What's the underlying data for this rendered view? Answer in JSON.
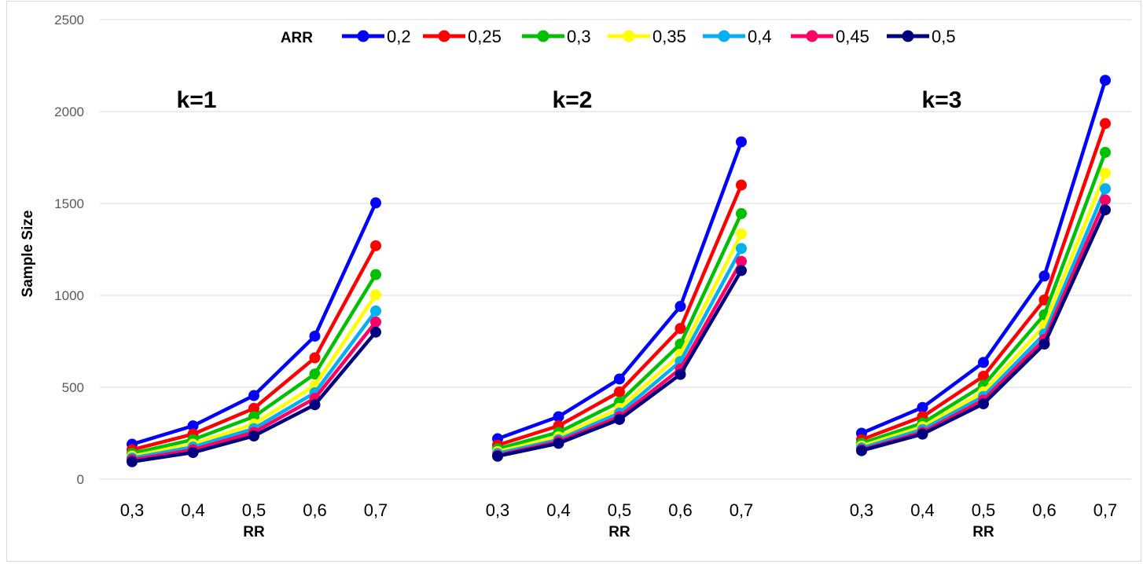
{
  "chart_data": {
    "type": "line",
    "ylabel": "Sample Size",
    "ylim": [
      0,
      2500
    ],
    "yticks": [
      "0",
      "500",
      "1000",
      "1500",
      "2000",
      "2500"
    ],
    "grid": true,
    "legend": {
      "title": "ARR",
      "position": "top"
    },
    "panels": [
      {
        "title": "k=1",
        "xlabel": "RR",
        "x": [
          "0,3",
          "0,4",
          "0,5",
          "0,6",
          "0,7"
        ],
        "series": [
          {
            "name": "0,2",
            "color": "#0000FF",
            "values": [
              190,
              290,
              455,
              778,
              1503
            ]
          },
          {
            "name": "0,25",
            "color": "#FF0000",
            "values": [
              160,
              245,
              385,
              660,
              1270
            ]
          },
          {
            "name": "0,3",
            "color": "#00C000",
            "values": [
              140,
              215,
              340,
              572,
              1113
            ]
          },
          {
            "name": "0,35",
            "color": "#FFFF00",
            "values": [
              125,
              190,
              300,
              510,
              1003
            ]
          },
          {
            "name": "0,4",
            "color": "#00B0F0",
            "values": [
              115,
              175,
              275,
              470,
              915
            ]
          },
          {
            "name": "0,45",
            "color": "#FF0066",
            "values": [
              105,
              160,
              255,
              440,
              855
            ]
          },
          {
            "name": "0,5",
            "color": "#000080",
            "values": [
              95,
              145,
              235,
              405,
              800
            ]
          }
        ]
      },
      {
        "title": "k=2",
        "xlabel": "RR",
        "x": [
          "0,3",
          "0,4",
          "0,5",
          "0,6",
          "0,7"
        ],
        "series": [
          {
            "name": "0,2",
            "color": "#0000FF",
            "values": [
              220,
              340,
              545,
              940,
              1835
            ]
          },
          {
            "name": "0,25",
            "color": "#FF0000",
            "values": [
              185,
              290,
              475,
              820,
              1600
            ]
          },
          {
            "name": "0,3",
            "color": "#00C000",
            "values": [
              165,
              255,
              420,
              735,
              1445
            ]
          },
          {
            "name": "0,35",
            "color": "#FFFF00",
            "values": [
              150,
              230,
              385,
              680,
              1335
            ]
          },
          {
            "name": "0,4",
            "color": "#00B0F0",
            "values": [
              140,
              215,
              360,
              640,
              1255
            ]
          },
          {
            "name": "0,45",
            "color": "#FF0066",
            "values": [
              130,
              205,
              340,
              600,
              1185
            ]
          },
          {
            "name": "0,5",
            "color": "#000080",
            "values": [
              125,
              195,
              325,
              570,
              1135
            ]
          }
        ]
      },
      {
        "title": "k=3",
        "xlabel": "RR",
        "x": [
          "0,3",
          "0,4",
          "0,5",
          "0,6",
          "0,7"
        ],
        "series": [
          {
            "name": "0,2",
            "color": "#0000FF",
            "values": [
              250,
              390,
              635,
              1105,
              2170
            ]
          },
          {
            "name": "0,25",
            "color": "#FF0000",
            "values": [
              215,
              340,
              560,
              975,
              1935
            ]
          },
          {
            "name": "0,3",
            "color": "#00C000",
            "values": [
              195,
              305,
              510,
              895,
              1778
            ]
          },
          {
            "name": "0,35",
            "color": "#FFFF00",
            "values": [
              180,
              285,
              475,
              835,
              1665
            ]
          },
          {
            "name": "0,4",
            "color": "#00B0F0",
            "values": [
              170,
              270,
              450,
              790,
              1580
            ]
          },
          {
            "name": "0,45",
            "color": "#FF0066",
            "values": [
              160,
              255,
              430,
              760,
              1520
            ]
          },
          {
            "name": "0,5",
            "color": "#000080",
            "values": [
              155,
              245,
              410,
              735,
              1465
            ]
          }
        ]
      }
    ]
  }
}
